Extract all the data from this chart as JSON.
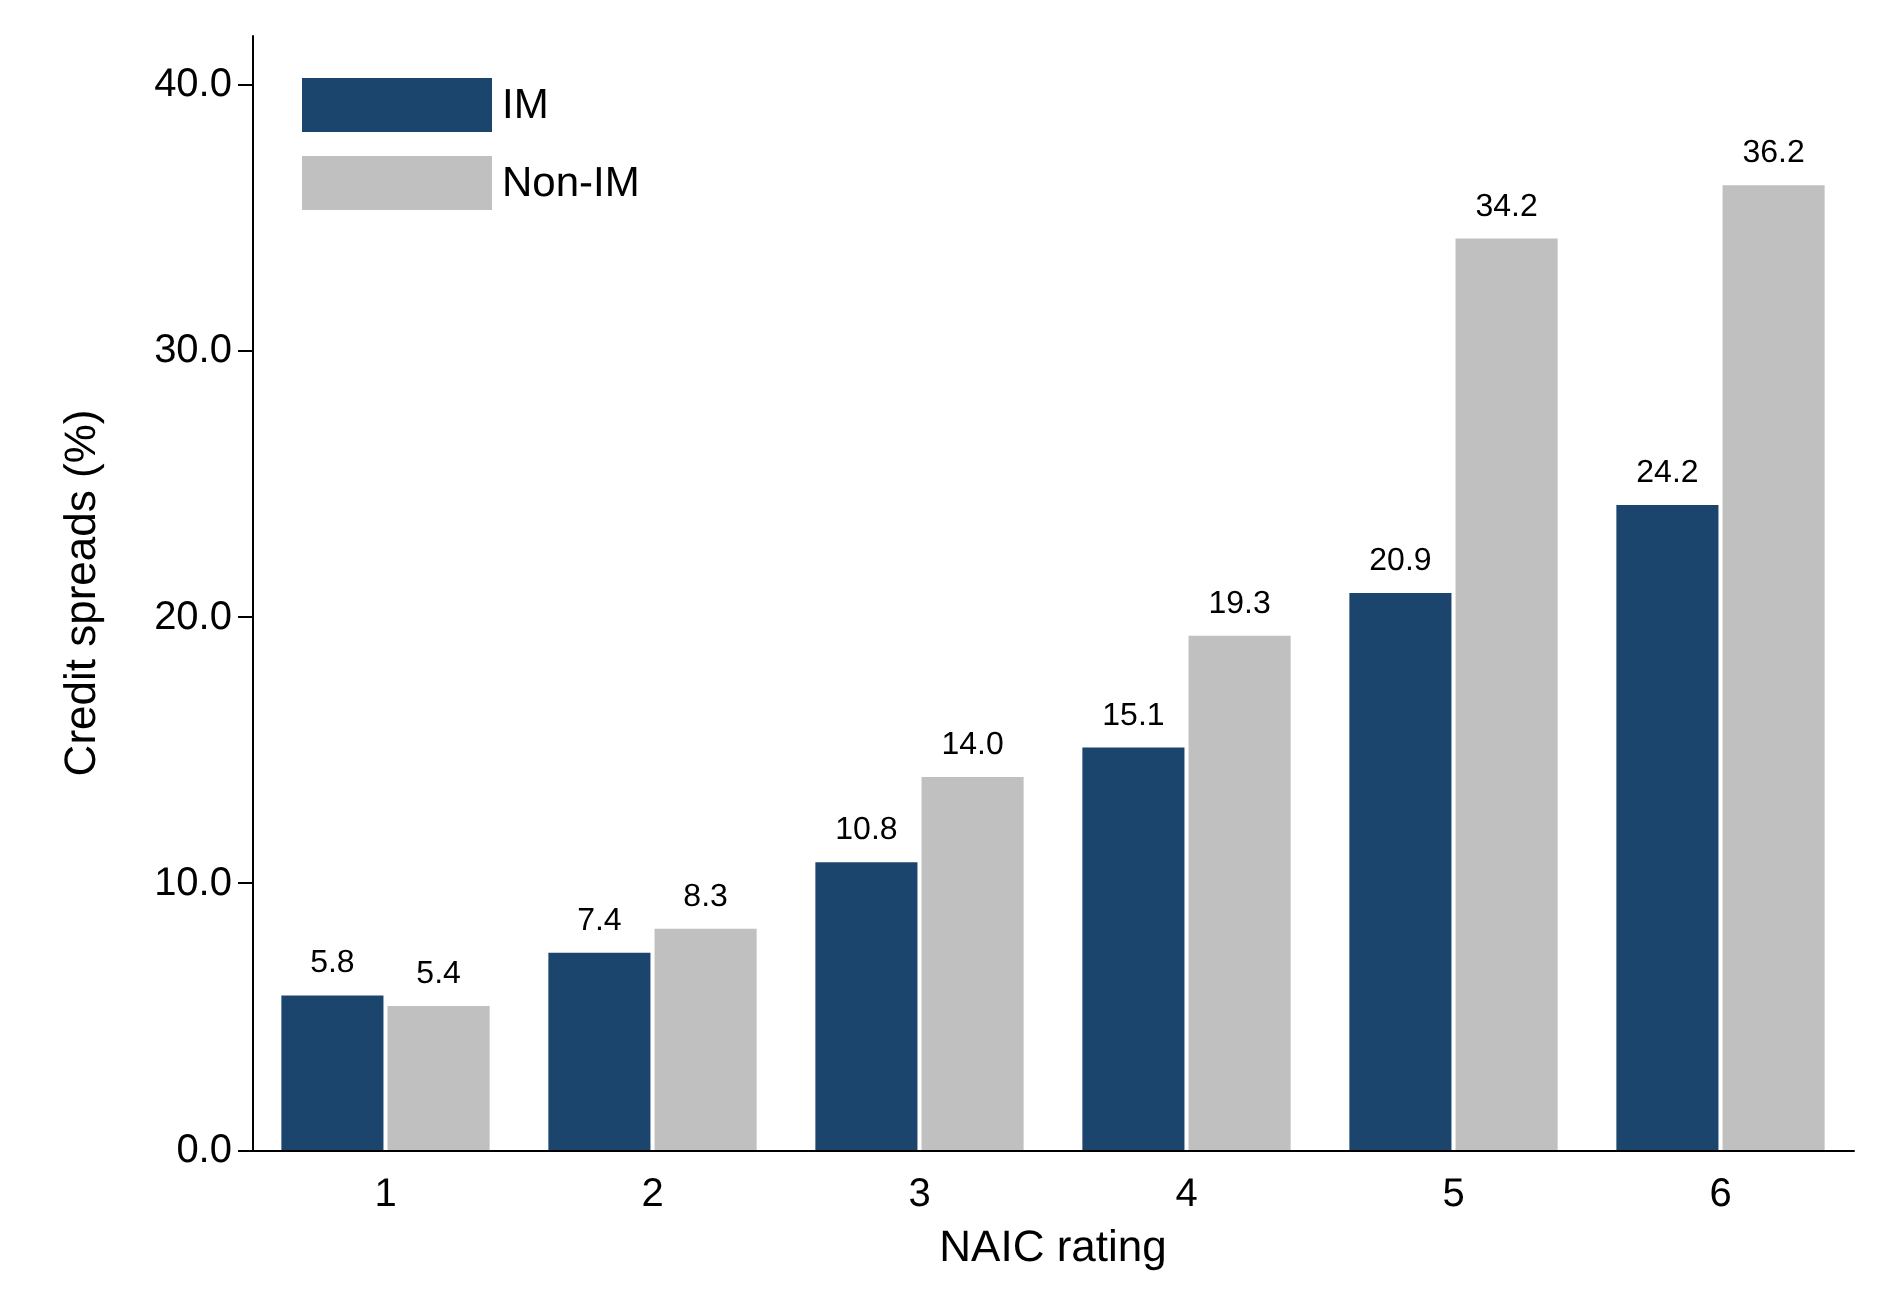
{
  "chart_data": {
    "type": "bar",
    "xlabel": "NAIC rating",
    "ylabel": "Credit spreads (%)",
    "categories": [
      "1",
      "2",
      "3",
      "4",
      "5",
      "6"
    ],
    "series": [
      {
        "name": "IM",
        "color": "#1c456e",
        "values": [
          5.8,
          7.4,
          10.8,
          15.1,
          20.9,
          24.2
        ],
        "value_labels": [
          "5.8",
          "7.4",
          "10.8",
          "15.1",
          "20.9",
          "24.2"
        ]
      },
      {
        "name": "Non-IM",
        "color": "#c0c0c0",
        "values": [
          5.4,
          8.3,
          14.0,
          19.3,
          34.2,
          36.2
        ],
        "value_labels": [
          "5.4",
          "8.3",
          "14.0",
          "19.3",
          "34.2",
          "36.2"
        ]
      }
    ],
    "ylim": [
      0,
      41.8
    ],
    "yticks": [
      {
        "value": 0,
        "label": "0.0"
      },
      {
        "value": 10,
        "label": "10.0"
      },
      {
        "value": 20,
        "label": "20.0"
      },
      {
        "value": 30,
        "label": "30.0"
      },
      {
        "value": 40,
        "label": "40.0"
      }
    ],
    "grid": false,
    "legend": "top left"
  }
}
